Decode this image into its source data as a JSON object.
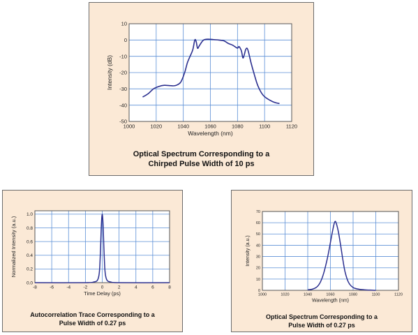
{
  "panels": [
    {
      "caption": [
        "Optical Spectrum Corresponding to a",
        "Chirped Pulse Width of 10 ps"
      ]
    },
    {
      "caption": [
        "Autocorrelation Trace Corresponding to a",
        "Pulse Width of 0.27 ps"
      ]
    },
    {
      "caption": [
        "Optical Spectrum Corresponding to a",
        "Pulse Width of 0.27 ps"
      ]
    }
  ],
  "chart_data": [
    {
      "type": "line",
      "xlabel": "Wavelength (nm)",
      "ylabel": "Intensity (dB)",
      "xlim": [
        1000,
        1120
      ],
      "ylim": [
        -50,
        10
      ],
      "xticks": [
        1000,
        1020,
        1040,
        1060,
        1080,
        1100,
        1120
      ],
      "yticks": [
        -50,
        -40,
        -30,
        -20,
        -10,
        0,
        10
      ],
      "grid": true,
      "line_color": "#2b2f8f",
      "series": [
        {
          "x": [
            1010,
            1014,
            1018,
            1022,
            1026,
            1030,
            1034,
            1038,
            1041,
            1043,
            1045,
            1047,
            1048.5,
            1049.5,
            1050.5,
            1051.5,
            1053,
            1055,
            1058,
            1062,
            1066,
            1070,
            1073,
            1076,
            1078,
            1080,
            1081,
            1082,
            1083,
            1084,
            1085,
            1086,
            1087,
            1088,
            1090,
            1092,
            1095,
            1099,
            1104,
            1108,
            1111
          ],
          "y": [
            -35,
            -33,
            -30,
            -28.5,
            -27.8,
            -28,
            -28,
            -26,
            -20,
            -14,
            -10,
            -6,
            0,
            -1,
            -5,
            -4,
            -2,
            0,
            0.5,
            0.3,
            0,
            -0.5,
            -2,
            -3,
            -4,
            -5,
            -4,
            -5,
            -7,
            -11,
            -9,
            -6,
            -5,
            -7,
            -14,
            -20,
            -28,
            -34,
            -37,
            -38.5,
            -39
          ]
        }
      ]
    },
    {
      "type": "line",
      "xlabel": "Time Delay (ps)",
      "ylabel": "Normalized Intensity (a.u.)",
      "xlim": [
        -8,
        8
      ],
      "ylim": [
        0,
        1.05
      ],
      "xticks": [
        -8,
        -6,
        -4,
        -2,
        0,
        2,
        4,
        6,
        8
      ],
      "yticks": [
        0,
        0.2,
        0.4,
        0.6,
        0.8,
        1.0
      ],
      "ytick_labels": [
        "0.0",
        "0.2",
        "0.4",
        "0.6",
        "0.8",
        "1.0"
      ],
      "grid": true,
      "line_color": "#2b2f8f",
      "series": [
        {
          "x": [
            -8,
            -2,
            -1,
            -0.6,
            -0.4,
            -0.3,
            -0.2,
            -0.1,
            0,
            0.1,
            0.2,
            0.3,
            0.4,
            0.6,
            1,
            2,
            8
          ],
          "y": [
            0,
            0,
            0.01,
            0.03,
            0.1,
            0.22,
            0.5,
            0.85,
            1.0,
            0.85,
            0.5,
            0.22,
            0.1,
            0.03,
            0.01,
            0,
            0
          ]
        }
      ]
    },
    {
      "type": "line",
      "xlabel": "Wavelength (nm)",
      "ylabel": "Intensity (a.u.)",
      "xlim": [
        1000,
        1120
      ],
      "ylim": [
        0,
        70
      ],
      "xticks": [
        1000,
        1020,
        1040,
        1060,
        1080,
        1100,
        1120
      ],
      "yticks": [
        0,
        10,
        20,
        30,
        40,
        50,
        60,
        70
      ],
      "grid": true,
      "line_color": "#2b2f8f",
      "series": [
        {
          "x": [
            1040,
            1044,
            1048,
            1051,
            1054,
            1057,
            1059,
            1061,
            1063,
            1064,
            1065,
            1067,
            1069,
            1071,
            1073,
            1076,
            1080,
            1085,
            1090,
            1095,
            1100
          ],
          "y": [
            0.5,
            1,
            3,
            7,
            15,
            27,
            37,
            48,
            58,
            61,
            60,
            52,
            40,
            27,
            16,
            7,
            2.5,
            1,
            0.5,
            0.2,
            0
          ]
        }
      ]
    }
  ]
}
